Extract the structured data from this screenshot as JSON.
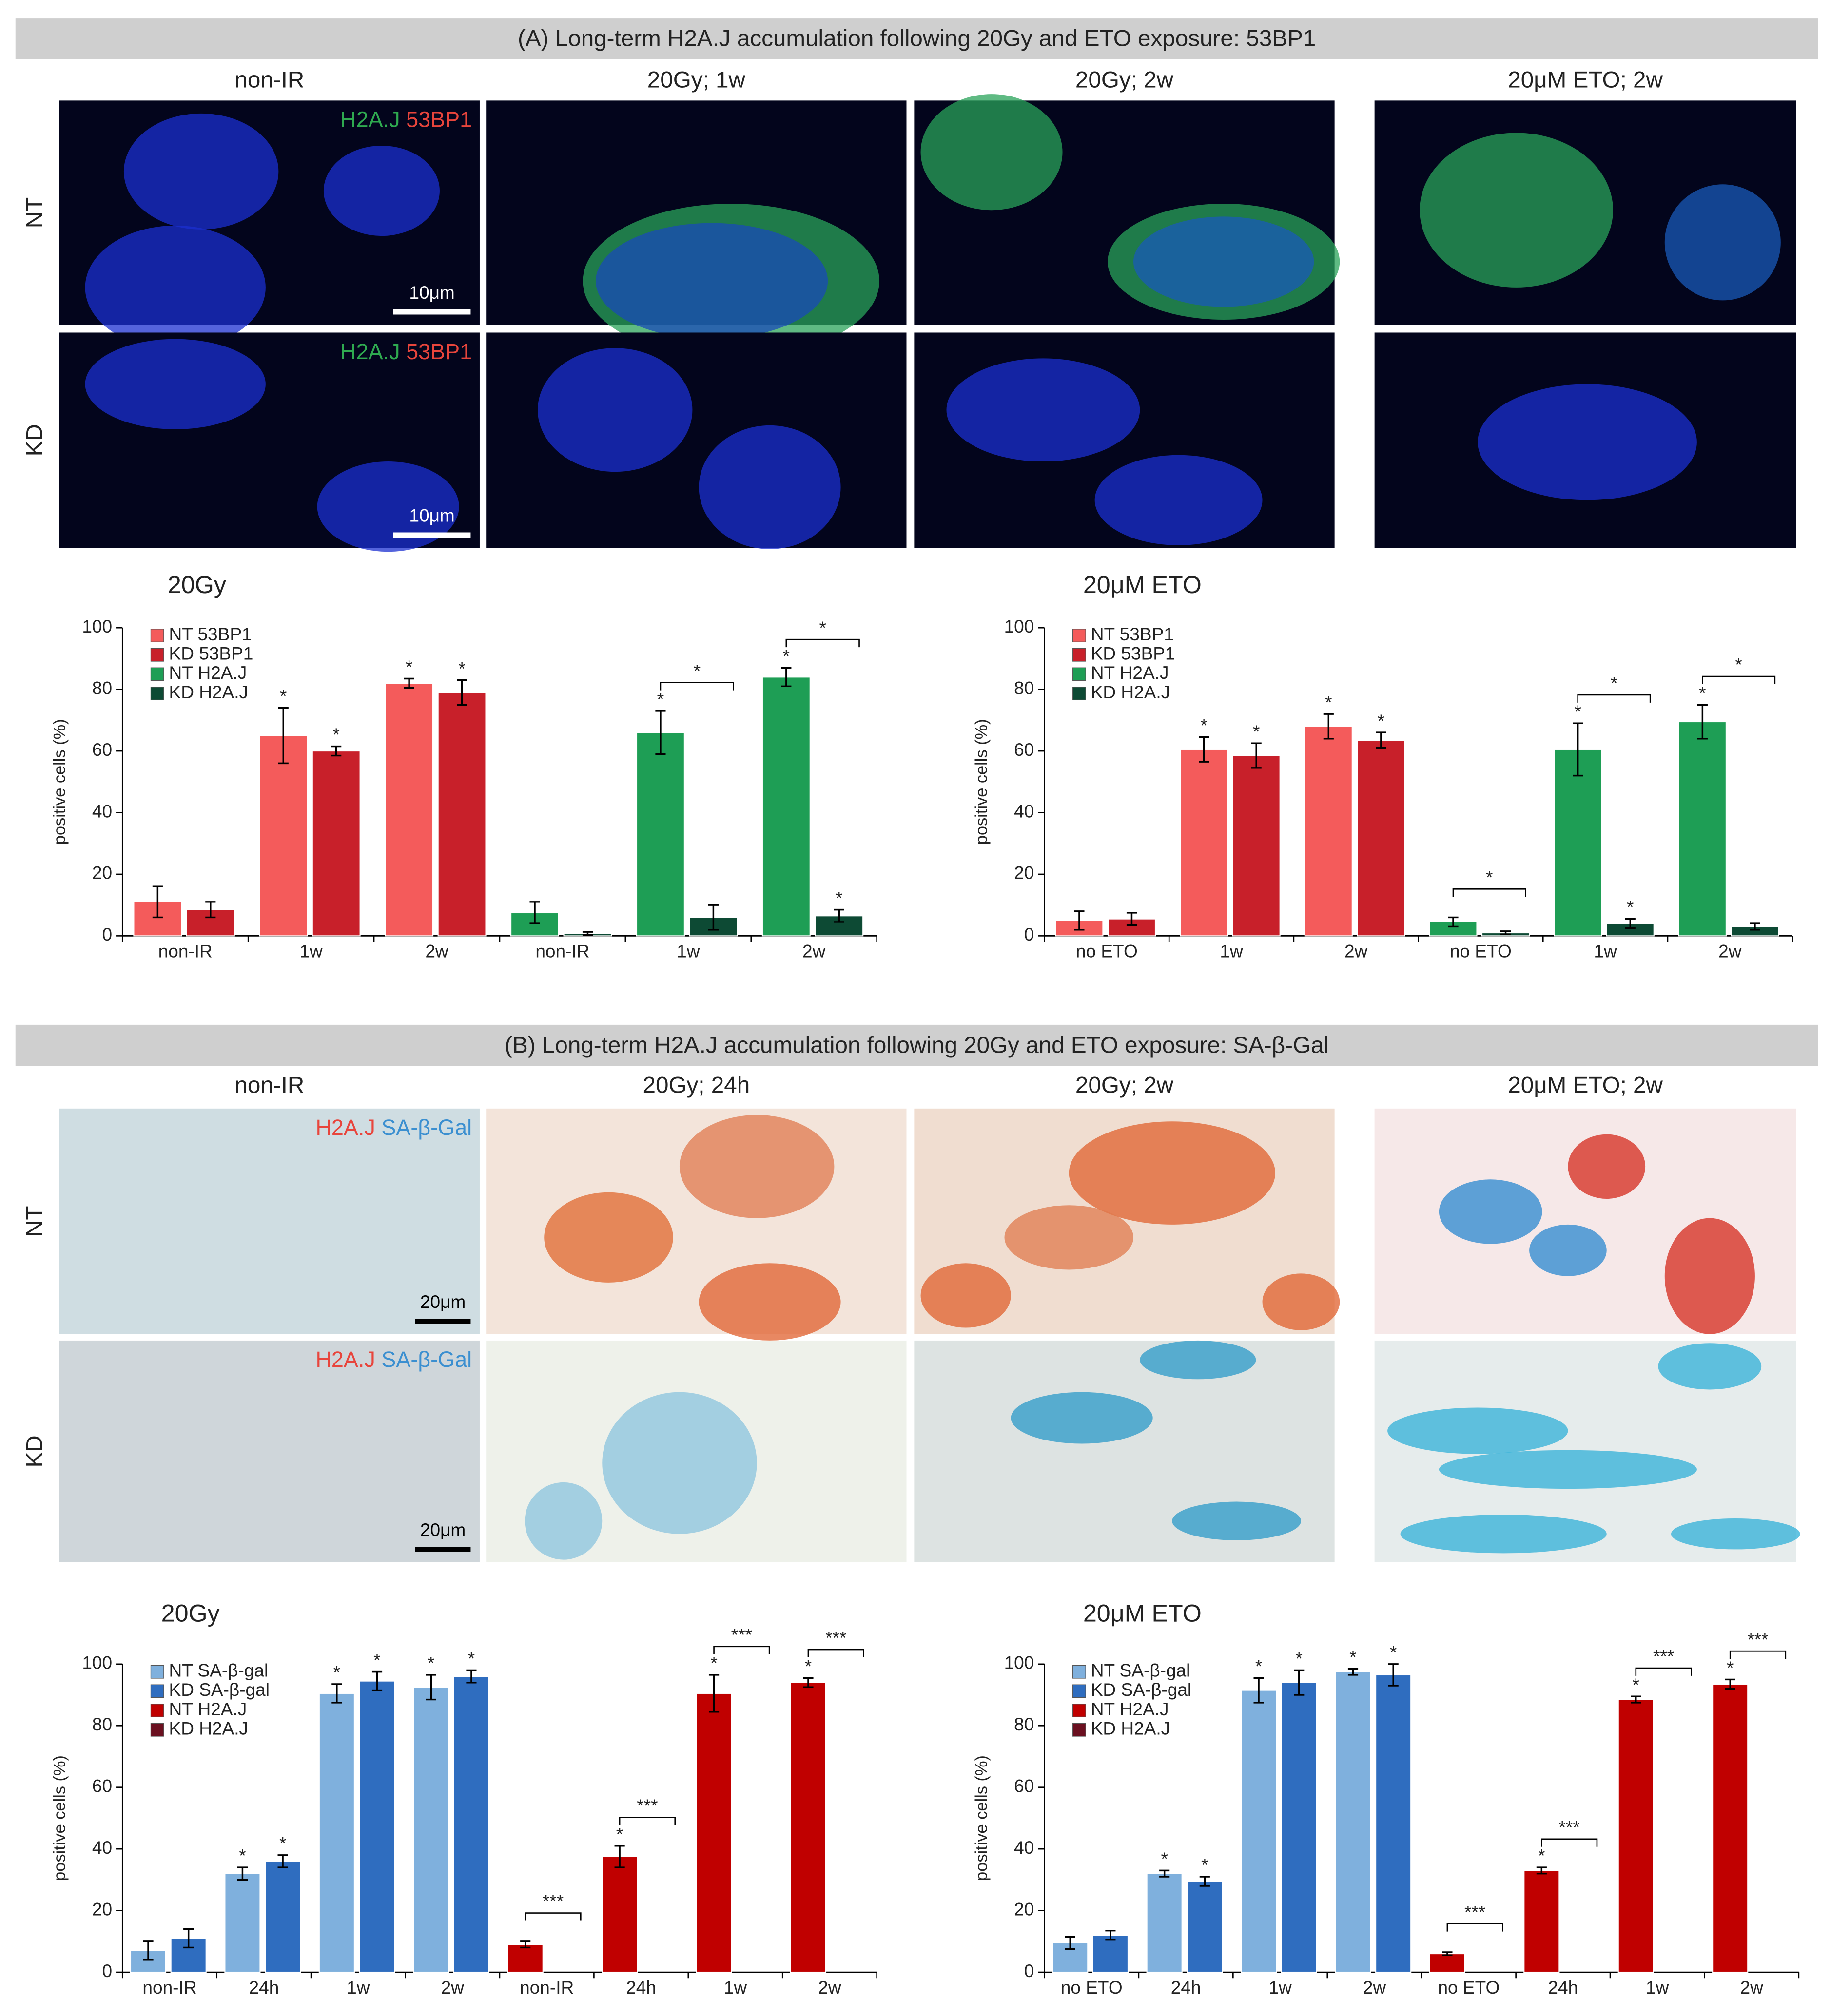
{
  "panels": [
    {
      "title": "(A) Long-term H2A.J accumulation following 20Gy and ETO exposure: 53BP1",
      "columns": [
        "non-IR",
        "20Gy; 1w",
        "20Gy; 2w",
        "20μM ETO; 2w"
      ],
      "rows": [
        "NT",
        "KD"
      ],
      "stain_labels": [
        "H2A.J",
        "53BP1"
      ],
      "scale_bar": "10μm"
    },
    {
      "title": "(B) Long-term H2A.J accumulation following 20Gy and ETO exposure: SA-β-Gal",
      "columns": [
        "non-IR",
        "20Gy; 24h",
        "20Gy; 2w",
        "20μM ETO; 2w"
      ],
      "rows": [
        "NT",
        "KD"
      ],
      "stain_labels": [
        "H2A.J",
        "SA-β-Gal"
      ],
      "scale_bar": "20μm"
    }
  ],
  "chart_data": [
    {
      "type": "bar",
      "title": "20Gy",
      "y_label": "positive cells (%)",
      "legend": "upper left",
      "categories": [
        "non-IR",
        "1w",
        "2w",
        "non-IR",
        "1w",
        "2w"
      ],
      "ylim": [
        0,
        100
      ],
      "yticks": [
        0,
        20,
        40,
        60,
        80,
        100
      ],
      "series": [
        {
          "name": "NT 53BP1",
          "color": "#f45b5b",
          "values": [
            11,
            65,
            82,
            null,
            null,
            null
          ],
          "errors": [
            5,
            9,
            1.5,
            null,
            null,
            null
          ],
          "stars": [
            null,
            "*",
            "*",
            null,
            null,
            null
          ]
        },
        {
          "name": "KD 53BP1",
          "color": "#c8202a",
          "values": [
            8.5,
            60,
            79,
            null,
            null,
            null
          ],
          "errors": [
            2.5,
            1.5,
            4,
            null,
            null,
            null
          ],
          "stars": [
            null,
            "*",
            "*",
            null,
            null,
            null
          ]
        },
        {
          "name": "NT H2A.J",
          "color": "#1e9e55",
          "values": [
            null,
            null,
            null,
            7.5,
            66,
            84
          ],
          "errors": [
            null,
            null,
            null,
            3.5,
            7,
            3
          ],
          "stars": [
            null,
            null,
            null,
            null,
            "*",
            "*"
          ]
        },
        {
          "name": "KD H2A.J",
          "color": "#0d4a34",
          "values": [
            null,
            null,
            null,
            0.8,
            6,
            6.5
          ],
          "errors": [
            null,
            null,
            null,
            0.5,
            4,
            2
          ],
          "stars": [
            null,
            null,
            null,
            null,
            null,
            "*"
          ]
        }
      ],
      "bracket_labels": [
        null,
        null,
        null,
        null,
        "*",
        "*"
      ]
    },
    {
      "type": "bar",
      "title": "20μM ETO",
      "y_label": "positive cells (%)",
      "legend": "upper left",
      "categories": [
        "no ETO",
        "1w",
        "2w",
        "no ETO",
        "1w",
        "2w"
      ],
      "ylim": [
        0,
        100
      ],
      "yticks": [
        0,
        20,
        40,
        60,
        80,
        100
      ],
      "series": [
        {
          "name": "NT 53BP1",
          "color": "#f45b5b",
          "values": [
            5,
            60.5,
            68,
            null,
            null,
            null
          ],
          "errors": [
            3,
            4,
            4,
            null,
            null,
            null
          ],
          "stars": [
            null,
            "*",
            "*",
            null,
            null,
            null
          ]
        },
        {
          "name": "KD 53BP1",
          "color": "#c8202a",
          "values": [
            5.5,
            58.5,
            63.5,
            null,
            null,
            null
          ],
          "errors": [
            2,
            4,
            2.5,
            null,
            null,
            null
          ],
          "stars": [
            null,
            "*",
            "*",
            null,
            null,
            null
          ]
        },
        {
          "name": "NT H2A.J",
          "color": "#1e9e55",
          "values": [
            null,
            null,
            null,
            4.5,
            60.5,
            69.5
          ],
          "errors": [
            null,
            null,
            null,
            1.5,
            8.5,
            5.5
          ],
          "stars": [
            null,
            null,
            null,
            null,
            "*",
            "*"
          ]
        },
        {
          "name": "KD H2A.J",
          "color": "#0d4a34",
          "values": [
            null,
            null,
            null,
            1,
            4,
            3
          ],
          "errors": [
            null,
            null,
            null,
            0.5,
            1.5,
            1
          ],
          "stars": [
            null,
            null,
            null,
            null,
            "*",
            null
          ]
        }
      ],
      "bracket_labels": [
        null,
        null,
        null,
        "*",
        "*",
        "*"
      ]
    },
    {
      "type": "bar",
      "title": "20Gy",
      "y_label": "positive cells (%)",
      "legend": "upper left",
      "categories": [
        "non-IR",
        "24h",
        "1w",
        "2w",
        "non-IR",
        "24h",
        "1w",
        "2w"
      ],
      "ylim": [
        0,
        100
      ],
      "yticks": [
        0,
        20,
        40,
        60,
        80,
        100
      ],
      "series": [
        {
          "name": "NT SA-β-gal",
          "color": "#7fb0dd",
          "values": [
            7,
            32,
            90.5,
            92.5,
            null,
            null,
            null,
            null
          ],
          "errors": [
            3,
            2,
            3,
            4,
            null,
            null,
            null,
            null
          ],
          "stars": [
            null,
            "*",
            "*",
            "*",
            null,
            null,
            null,
            null
          ]
        },
        {
          "name": "KD SA-β-gal",
          "color": "#2f6dbf",
          "values": [
            11,
            36,
            94.5,
            96,
            null,
            null,
            null,
            null
          ],
          "errors": [
            3,
            2,
            3,
            2,
            null,
            null,
            null,
            null
          ],
          "stars": [
            null,
            "*",
            "*",
            "*",
            null,
            null,
            null,
            null
          ]
        },
        {
          "name": "NT H2A.J",
          "color": "#c00000",
          "values": [
            null,
            null,
            null,
            null,
            9,
            37.5,
            90.5,
            94
          ],
          "errors": [
            null,
            null,
            null,
            null,
            1,
            3.5,
            6,
            1.5
          ],
          "stars": [
            null,
            null,
            null,
            null,
            null,
            "*",
            "*",
            "*"
          ]
        },
        {
          "name": "KD H2A.J",
          "color": "#6b1020",
          "values": [
            null,
            null,
            null,
            null,
            0,
            0,
            0,
            0
          ],
          "errors": [
            null,
            null,
            null,
            null,
            null,
            null,
            null,
            null
          ],
          "stars": [
            null,
            null,
            null,
            null,
            null,
            null,
            null,
            null
          ]
        }
      ],
      "bracket_labels": [
        null,
        null,
        null,
        null,
        "***",
        "***",
        "***",
        "***"
      ]
    },
    {
      "type": "bar",
      "title": "20μM ETO",
      "y_label": "positive cells (%)",
      "legend": "upper left",
      "categories": [
        "no ETO",
        "24h",
        "1w",
        "2w",
        "no ETO",
        "24h",
        "1w",
        "2w"
      ],
      "ylim": [
        0,
        100
      ],
      "yticks": [
        0,
        20,
        40,
        60,
        80,
        100
      ],
      "series": [
        {
          "name": "NT SA-β-gal",
          "color": "#7fb0dd",
          "values": [
            9.5,
            32,
            91.5,
            97.5,
            null,
            null,
            null,
            null
          ],
          "errors": [
            2,
            1,
            4,
            1,
            null,
            null,
            null,
            null
          ],
          "stars": [
            null,
            "*",
            "*",
            "*",
            null,
            null,
            null,
            null
          ]
        },
        {
          "name": "KD SA-β-gal",
          "color": "#2f6dbf",
          "values": [
            12,
            29.5,
            94,
            96.5,
            null,
            null,
            null,
            null
          ],
          "errors": [
            1.5,
            1.5,
            4,
            3.5,
            null,
            null,
            null,
            null
          ],
          "stars": [
            null,
            "*",
            "*",
            "*",
            null,
            null,
            null,
            null
          ]
        },
        {
          "name": "NT H2A.J",
          "color": "#c00000",
          "values": [
            null,
            null,
            null,
            null,
            6,
            33,
            88.5,
            93.5
          ],
          "errors": [
            null,
            null,
            null,
            null,
            0.5,
            1,
            1,
            1.5
          ],
          "stars": [
            null,
            null,
            null,
            null,
            null,
            "*",
            "*",
            "*"
          ]
        },
        {
          "name": "KD H2A.J",
          "color": "#6b1020",
          "values": [
            null,
            null,
            null,
            null,
            0,
            0,
            0,
            0
          ],
          "errors": [
            null,
            null,
            null,
            null,
            null,
            null,
            null,
            null
          ],
          "stars": [
            null,
            null,
            null,
            null,
            null,
            null,
            null,
            null
          ]
        }
      ],
      "bracket_labels": [
        null,
        null,
        null,
        null,
        "***",
        "***",
        "***",
        "***"
      ]
    }
  ]
}
